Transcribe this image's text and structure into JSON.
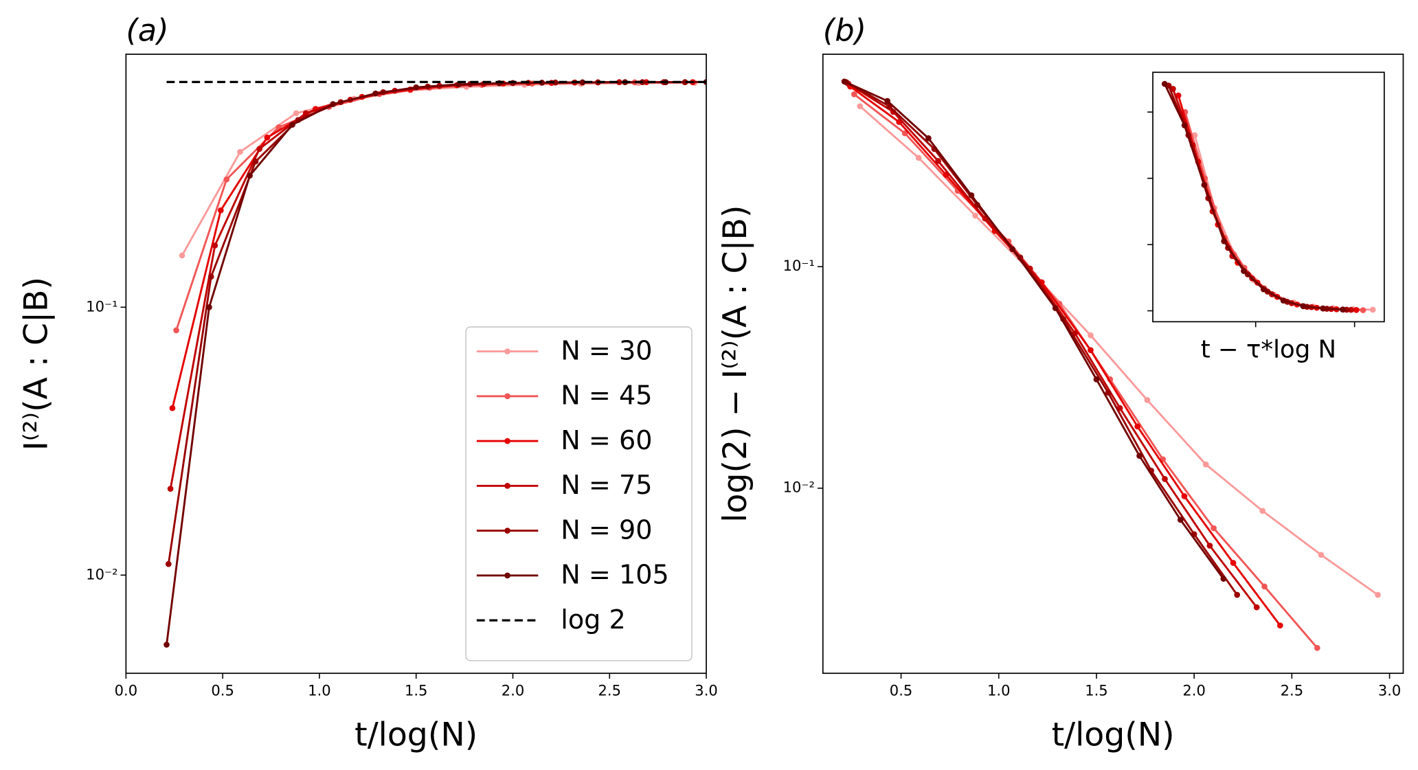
{
  "chart_data": [
    {
      "type": "line",
      "title": "(a)",
      "xlabel": "t/log(N)",
      "ylabel": "I⁽²⁾(A : C|B)",
      "yscale": "log",
      "legend": "lower right",
      "xlim": [
        0,
        3.0
      ],
      "ylim": [
        0.0043,
        0.88
      ],
      "xticks": [
        {
          "value": 0,
          "label": "0.0"
        },
        0.5,
        {
          "value": 1,
          "label": "1.0"
        },
        1.5,
        {
          "value": 2,
          "label": "2.0"
        },
        2.5,
        {
          "value": 3,
          "label": "3.0"
        }
      ],
      "yticks": [
        {
          "value": 0.01,
          "label": "10⁻²"
        },
        {
          "value": 0.1,
          "label": "10⁻¹"
        }
      ],
      "series": [
        {
          "name": "N = 30",
          "color": "#fa9a9a",
          "x": [
            0.29,
            0.59,
            0.88,
            1.18,
            1.47,
            1.76,
            2.06,
            2.35,
            2.65,
            2.94
          ],
          "values": [
            0.156,
            0.38,
            0.53,
            0.6,
            0.645,
            0.665,
            0.677,
            0.683,
            0.687,
            0.689
          ]
        },
        {
          "name": "N = 45",
          "color": "#f25555",
          "x": [
            0.26,
            0.52,
            0.79,
            1.05,
            1.31,
            1.57,
            1.84,
            2.1,
            2.36,
            2.63,
            2.89
          ],
          "values": [
            0.082,
            0.3,
            0.47,
            0.56,
            0.625,
            0.66,
            0.676,
            0.684,
            0.689,
            0.691,
            0.692
          ]
        },
        {
          "name": "N = 60",
          "color": "#e60000",
          "x": [
            0.24,
            0.49,
            0.73,
            0.98,
            1.22,
            1.47,
            1.71,
            1.95,
            2.2,
            2.44,
            2.69,
            2.93
          ],
          "values": [
            0.042,
            0.23,
            0.43,
            0.55,
            0.61,
            0.65,
            0.674,
            0.684,
            0.688,
            0.691,
            0.692,
            0.692
          ]
        },
        {
          "name": "N = 75",
          "color": "#c00000",
          "x": [
            0.23,
            0.46,
            0.69,
            0.93,
            1.16,
            1.39,
            1.62,
            1.85,
            2.08,
            2.32,
            2.55,
            2.78
          ],
          "values": [
            0.021,
            0.17,
            0.39,
            0.53,
            0.595,
            0.643,
            0.67,
            0.682,
            0.688,
            0.69,
            0.692,
            0.692
          ]
        },
        {
          "name": "N = 90",
          "color": "#9a0000",
          "x": [
            0.22,
            0.44,
            0.67,
            0.89,
            1.11,
            1.33,
            1.56,
            1.78,
            2.0,
            2.22,
            2.44,
            2.67,
            2.89
          ],
          "values": [
            0.011,
            0.13,
            0.35,
            0.5,
            0.583,
            0.635,
            0.666,
            0.681,
            0.687,
            0.69,
            0.691,
            0.692,
            0.692
          ]
        },
        {
          "name": "N = 105",
          "color": "#720000",
          "x": [
            0.21,
            0.43,
            0.64,
            0.86,
            1.07,
            1.29,
            1.5,
            1.72,
            1.93,
            2.15,
            2.36,
            2.58,
            2.79,
            3.0
          ],
          "values": [
            0.0055,
            0.1,
            0.31,
            0.48,
            0.573,
            0.628,
            0.662,
            0.679,
            0.686,
            0.689,
            0.691,
            0.692,
            0.692,
            0.693
          ]
        },
        {
          "name": "log 2",
          "color": "#000000",
          "dashed": true,
          "x": [
            0.21,
            3.0
          ],
          "values": [
            0.6931,
            0.6931
          ]
        }
      ]
    },
    {
      "type": "line",
      "title": "(b)",
      "xlabel": "t/log(N)",
      "ylabel": "log(2) − I⁽²⁾(A : C|B)",
      "yscale": "log",
      "xlim": [
        0.1,
        3.07
      ],
      "ylim": [
        0.00146,
        0.91
      ],
      "xticks": [
        0.5,
        {
          "value": 1,
          "label": "1.0"
        },
        1.5,
        {
          "value": 2,
          "label": "2.0"
        },
        2.5,
        {
          "value": 3,
          "label": "3.0"
        }
      ],
      "yticks": [
        {
          "value": 0.01,
          "label": "10⁻²"
        },
        {
          "value": 0.1,
          "label": "10⁻¹"
        }
      ],
      "series": [
        {
          "color": "#fa9a9a",
          "x": [
            0.29,
            0.59,
            0.88,
            1.18,
            1.47,
            1.76,
            2.06,
            2.35,
            2.65,
            2.94
          ],
          "values": [
            0.53,
            0.31,
            0.17,
            0.092,
            0.049,
            0.025,
            0.0128,
            0.0079,
            0.005,
            0.0033
          ]
        },
        {
          "color": "#f25555",
          "x": [
            0.26,
            0.52,
            0.79,
            1.05,
            1.31,
            1.57,
            1.84,
            2.1,
            2.36,
            2.63
          ],
          "values": [
            0.6,
            0.4,
            0.22,
            0.13,
            0.068,
            0.031,
            0.0135,
            0.0066,
            0.0036,
            0.0019
          ]
        },
        {
          "color": "#e60000",
          "x": [
            0.24,
            0.49,
            0.73,
            0.98,
            1.22,
            1.47,
            1.71,
            1.95,
            2.2,
            2.44
          ],
          "values": [
            0.65,
            0.45,
            0.26,
            0.145,
            0.085,
            0.042,
            0.019,
            0.0092,
            0.0046,
            0.0024
          ]
        },
        {
          "color": "#c00000",
          "x": [
            0.23,
            0.46,
            0.69,
            0.93,
            1.16,
            1.39,
            1.62,
            1.85,
            2.08,
            2.32
          ],
          "values": [
            0.67,
            0.5,
            0.3,
            0.165,
            0.098,
            0.05,
            0.023,
            0.011,
            0.0055,
            0.0029
          ]
        },
        {
          "color": "#9a0000",
          "x": [
            0.22,
            0.44,
            0.67,
            0.89,
            1.11,
            1.33,
            1.56,
            1.78,
            2.0,
            2.22
          ],
          "values": [
            0.68,
            0.53,
            0.34,
            0.19,
            0.11,
            0.058,
            0.027,
            0.012,
            0.0062,
            0.0033
          ]
        },
        {
          "color": "#720000",
          "x": [
            0.21,
            0.43,
            0.64,
            0.86,
            1.07,
            1.29,
            1.5,
            1.72,
            1.93,
            2.15
          ],
          "values": [
            0.685,
            0.56,
            0.38,
            0.21,
            0.12,
            0.065,
            0.031,
            0.014,
            0.0072,
            0.0039
          ]
        }
      ]
    },
    {
      "type": "line",
      "xlabel": "t − τ*log N",
      "tick_labels": false,
      "xlim": [
        -5.2,
        6.5
      ],
      "ylim": [
        -0.033,
        0.72
      ],
      "xticks": [
        0,
        5
      ],
      "yticks": [
        0,
        0.2,
        0.4,
        0.6
      ],
      "series": [
        {
          "color": "#fa9a9a",
          "x": [
            -3.08,
            -2.08,
            -1.08,
            -0.08,
            0.92,
            1.92,
            2.92,
            3.92,
            4.92,
            5.92
          ],
          "values": [
            0.53,
            0.31,
            0.17,
            0.092,
            0.049,
            0.025,
            0.0128,
            0.0079,
            0.005,
            0.0033
          ]
        },
        {
          "color": "#f25555",
          "x": [
            -3.57,
            -2.57,
            -1.57,
            -0.57,
            0.43,
            1.43,
            2.43,
            3.43,
            4.43,
            5.43
          ],
          "values": [
            0.6,
            0.4,
            0.22,
            0.13,
            0.068,
            0.031,
            0.0135,
            0.0066,
            0.0036,
            0.0019
          ]
        },
        {
          "color": "#e60000",
          "x": [
            -3.91,
            -2.91,
            -1.91,
            -0.91,
            0.09,
            1.09,
            2.09,
            3.09,
            4.09,
            5.09
          ],
          "values": [
            0.65,
            0.45,
            0.26,
            0.145,
            0.085,
            0.042,
            0.019,
            0.0092,
            0.0046,
            0.0024
          ]
        },
        {
          "color": "#c00000",
          "x": [
            -4.18,
            -3.18,
            -2.18,
            -1.18,
            -0.18,
            0.82,
            1.82,
            2.82,
            3.82,
            4.82
          ],
          "values": [
            0.67,
            0.5,
            0.3,
            0.165,
            0.098,
            0.05,
            0.023,
            0.011,
            0.0055,
            0.0029
          ]
        },
        {
          "color": "#9a0000",
          "x": [
            -4.4,
            -3.4,
            -2.4,
            -1.4,
            -0.4,
            0.6,
            1.6,
            2.6,
            3.6,
            4.6
          ],
          "values": [
            0.68,
            0.53,
            0.34,
            0.19,
            0.11,
            0.058,
            0.027,
            0.012,
            0.0062,
            0.0033
          ]
        },
        {
          "color": "#720000",
          "x": [
            -4.6,
            -3.6,
            -2.6,
            -1.6,
            -0.6,
            0.4,
            1.4,
            2.4,
            3.4,
            4.4
          ],
          "values": [
            0.685,
            0.56,
            0.38,
            0.21,
            0.12,
            0.065,
            0.031,
            0.014,
            0.0072,
            0.0039
          ]
        }
      ]
    }
  ]
}
